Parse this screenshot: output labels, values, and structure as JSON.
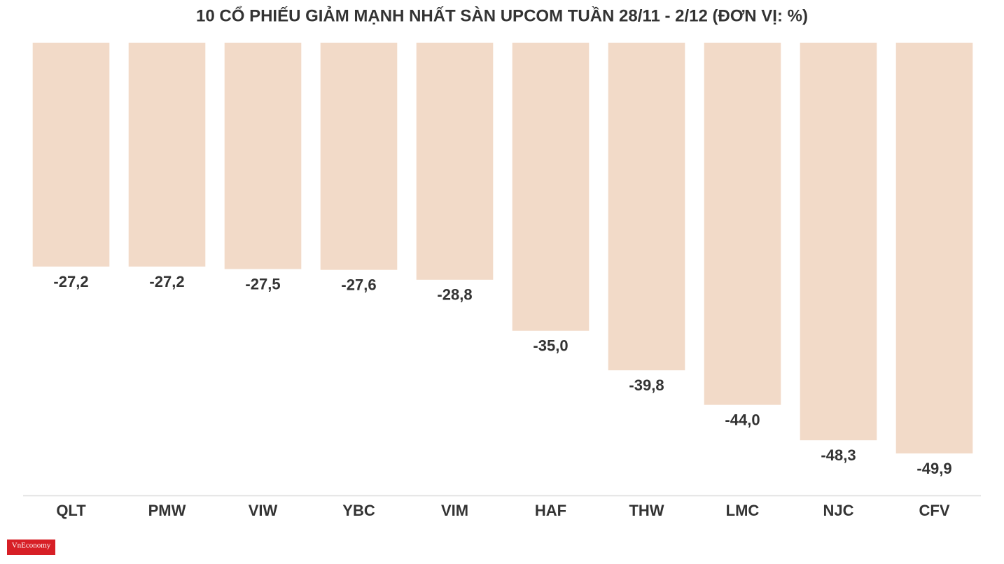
{
  "chart_data": {
    "type": "bar",
    "title": "10 CỔ PHIẾU GIẢM MẠNH NHẤT SÀN UPCOM TUẦN 28/11 - 2/12 (ĐƠN VỊ: %)",
    "categories": [
      "QLT",
      "PMW",
      "VIW",
      "YBC",
      "VIM",
      "HAF",
      "THW",
      "LMC",
      "NJC",
      "CFV"
    ],
    "values": [
      -27.2,
      -27.2,
      -27.5,
      -27.6,
      -28.8,
      -35.0,
      -39.8,
      -44.0,
      -48.3,
      -49.9
    ],
    "value_labels": [
      "-27,2",
      "-27,2",
      "-27,5",
      "-27,6",
      "-28,8",
      "-35,0",
      "-39,8",
      "-44,0",
      "-48,3",
      "-49,9"
    ],
    "color": "#f2dac8",
    "ylim": [
      -55,
      0
    ],
    "grid": false
  },
  "logo": "VnEconomy"
}
